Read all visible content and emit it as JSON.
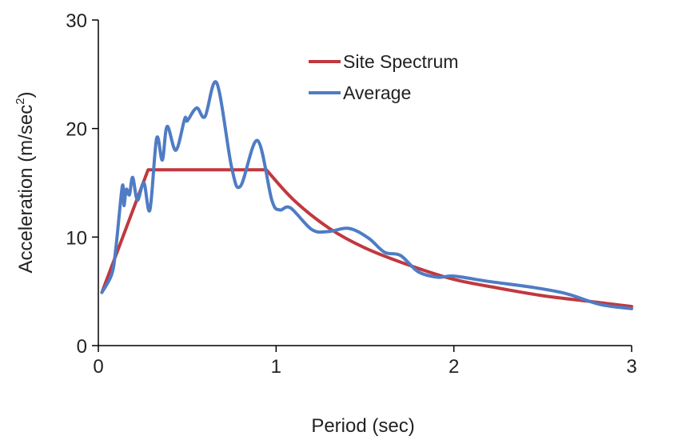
{
  "chart_data": {
    "type": "line",
    "xlabel": "Period (sec)",
    "ylabel": "Acceleration (m/sec",
    "ylabel_superscript": "2",
    "ylabel_close": ")",
    "xlim": [
      0,
      3
    ],
    "ylim": [
      0,
      30
    ],
    "xticks": [
      "0",
      "1",
      "2",
      "3"
    ],
    "yticks": [
      "0",
      "10",
      "20",
      "30"
    ],
    "grid": false,
    "legend_position": "top-center",
    "series": [
      {
        "name": "Site Spectrum",
        "color": "#c0393f",
        "x": [
          0.02,
          0.28,
          0.945,
          1.1,
          1.3,
          1.5,
          1.75,
          2.0,
          2.25,
          2.5,
          2.75,
          3.0
        ],
        "y": [
          4.9,
          16.2,
          16.2,
          13.4,
          10.8,
          9.0,
          7.4,
          6.1,
          5.3,
          4.6,
          4.1,
          3.6
        ]
      },
      {
        "name": "Average",
        "color": "#4f7cc4",
        "x": [
          0.02,
          0.076,
          0.1,
          0.135,
          0.144,
          0.157,
          0.175,
          0.193,
          0.22,
          0.256,
          0.29,
          0.328,
          0.36,
          0.387,
          0.436,
          0.486,
          0.5,
          0.553,
          0.6,
          0.666,
          0.75,
          0.8,
          0.895,
          0.976,
          1.02,
          1.08,
          1.2,
          1.29,
          1.41,
          1.52,
          1.61,
          1.7,
          1.8,
          1.91,
          2.0,
          2.2,
          2.43,
          2.63,
          2.82,
          3.0
        ],
        "y": [
          4.9,
          6.6,
          9.2,
          14.7,
          12.9,
          14.4,
          13.9,
          15.5,
          13.4,
          15.0,
          12.5,
          19.1,
          17.1,
          20.2,
          18.0,
          20.9,
          20.7,
          21.9,
          21.1,
          24.2,
          16.4,
          14.7,
          18.9,
          13.4,
          12.5,
          12.7,
          10.7,
          10.5,
          10.8,
          9.9,
          8.6,
          8.3,
          6.8,
          6.3,
          6.4,
          5.9,
          5.4,
          4.8,
          3.8,
          3.4
        ]
      }
    ]
  }
}
